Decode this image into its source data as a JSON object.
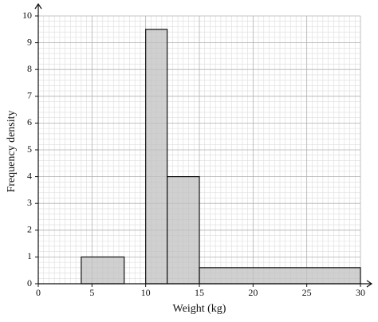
{
  "chart_data": {
    "type": "histogram",
    "x_label": "Weight (kg)",
    "y_label": "Frequency density",
    "bins": [
      4,
      8,
      10,
      12,
      15,
      30
    ],
    "counts": [
      1,
      0,
      9.5,
      4,
      0.6
    ],
    "color": "#c0c0c0",
    "xlim": [
      0,
      30
    ],
    "ylim": [
      0,
      10
    ],
    "xticks": [
      0,
      5,
      10,
      15,
      20,
      25,
      30
    ],
    "yticks": [
      0,
      1,
      2,
      3,
      4,
      5,
      6,
      7,
      8,
      9,
      10
    ],
    "grid": true
  }
}
